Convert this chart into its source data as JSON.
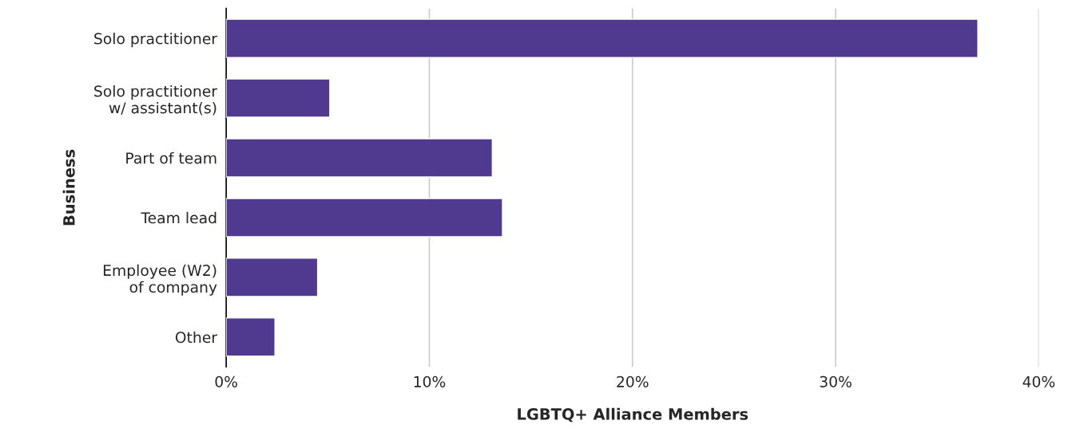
{
  "chart_data": {
    "type": "bar",
    "orientation": "horizontal",
    "xlabel": "LGBTQ+ Alliance Members",
    "ylabel": "Business",
    "categories": [
      "Solo practitioner",
      "Solo practitioner\nw/ assistant(s)",
      "Part of team",
      "Team lead",
      "Employee (W2)\nof company",
      "Other"
    ],
    "values": [
      37.0,
      5.1,
      13.1,
      13.6,
      4.5,
      2.4
    ],
    "color": "#4f3a8f",
    "xlim": [
      0,
      40
    ],
    "xticks": [
      {
        "value": 0,
        "label": "0%"
      },
      {
        "value": 10,
        "label": "10%"
      },
      {
        "value": 20,
        "label": "20%"
      },
      {
        "value": 30,
        "label": "30%"
      },
      {
        "value": 40,
        "label": "40%"
      }
    ],
    "grid": "x",
    "legend": false
  }
}
